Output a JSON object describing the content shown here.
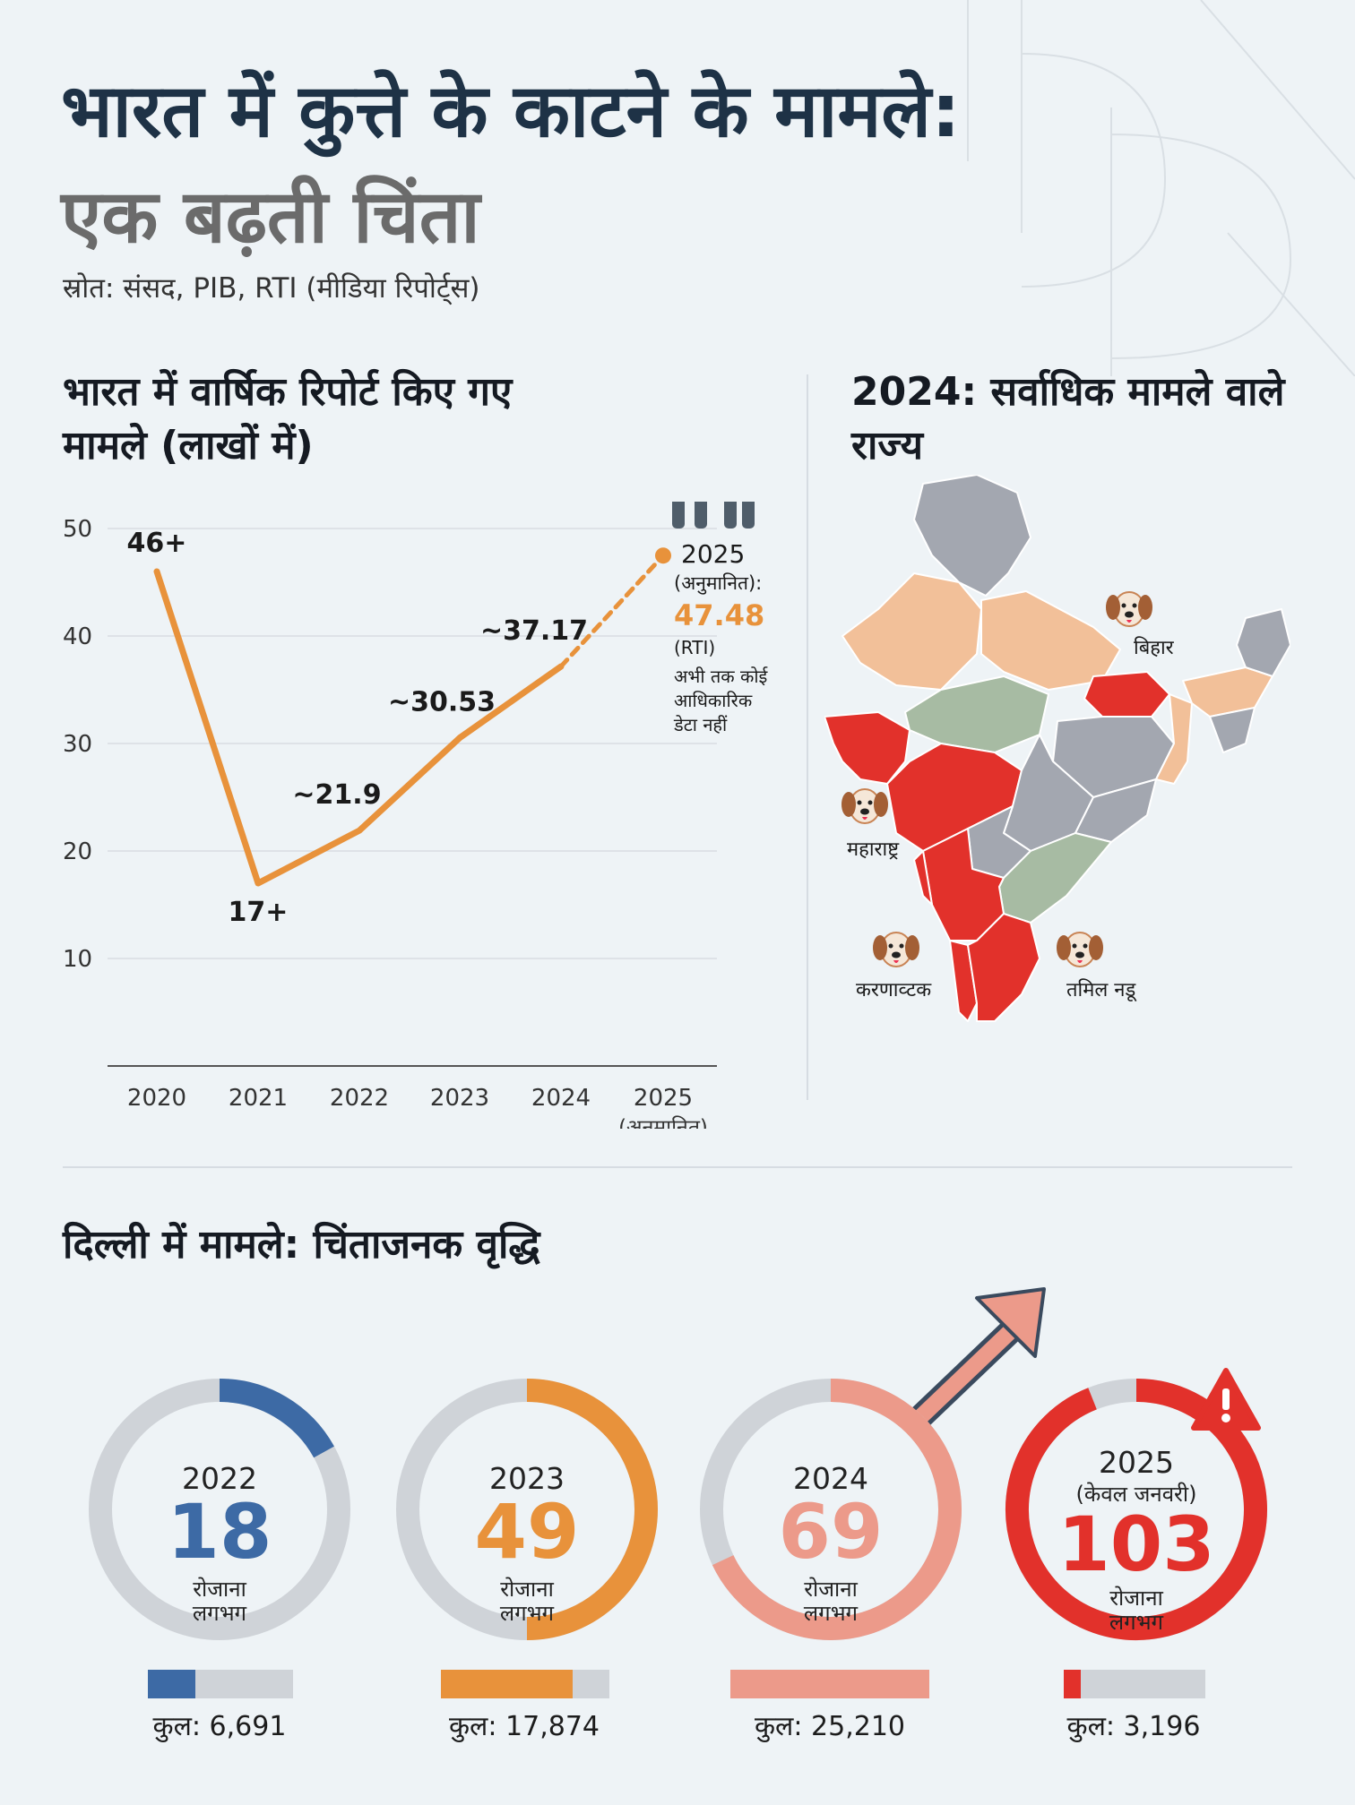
{
  "header": {
    "title_part1": "भारत में कुत्ते के काटने के मामले:",
    "title_part2": "एक बढ़ती चिंता",
    "source": "स्रोत: संसद, PIB, RTI (मीडिया रिपोर्ट्स)"
  },
  "line_section": {
    "title": "भारत में वार्षिक रिपोर्ट किए गए मामले (लाखों में)"
  },
  "map_section": {
    "title": "2024: सर्वाधिक मामले वाले राज्य",
    "state_labels": [
      "बिहार",
      "महाराष्ट्र",
      "करणाव्टक",
      "तमिल नडू"
    ],
    "colors": {
      "high": "#e2312b",
      "medium": "#f2c099",
      "low_green": "#a7bba3",
      "gray": "#a3a7b0"
    }
  },
  "chart_data": [
    {
      "type": "line",
      "title": "भारत में वार्षिक रिपोर्ट किए गए मामले (लाखों में)",
      "x": [
        "2020",
        "2021",
        "2022",
        "2023",
        "2024",
        "2025"
      ],
      "x_tick_labels": [
        "2020",
        "2021",
        "2022",
        "2023",
        "2024",
        "2025"
      ],
      "x_tick_sub": [
        "",
        "",
        "",
        "",
        "",
        "(अनुमानित)"
      ],
      "series": [
        {
          "values": [
            46,
            17,
            21.9,
            30.53,
            37.17,
            47.48
          ]
        }
      ],
      "data_labels": [
        "46+",
        "17+",
        "~21.9",
        "~30.53",
        "~37.17",
        "47.48"
      ],
      "projected_from_index": 4,
      "ylim": [
        0,
        50
      ],
      "yticks": [
        10,
        20,
        30,
        40,
        50
      ],
      "grid": true,
      "color": "#e8923b",
      "annotation": {
        "year": "2025",
        "note": "(अनुमानित):",
        "value": "47.48",
        "source": "(RTI)",
        "caption_lines": [
          "अभी तक कोई",
          "आधिकारिक",
          "डेटा नहीं"
        ]
      }
    },
    {
      "type": "donut",
      "title": "दिल्ली में मामले: चिंताजनक वृद्धि",
      "items": [
        {
          "year": "2022",
          "subtitle": "",
          "value": 18,
          "unit_line1": "रोजाना",
          "unit_line2": "लगभग",
          "total_label": "कुल: 6,691",
          "total": 6691,
          "ring_fraction": 0.17,
          "bar_fraction": 0.33,
          "color": "#3d6aa5"
        },
        {
          "year": "2023",
          "subtitle": "",
          "value": 49,
          "unit_line1": "रोजाना",
          "unit_line2": "लगभग",
          "total_label": "कुल: 17,874",
          "total": 17874,
          "ring_fraction": 0.5,
          "bar_fraction": 0.78,
          "color": "#e8923b"
        },
        {
          "year": "2024",
          "subtitle": "",
          "value": 69,
          "unit_line1": "रोजाना",
          "unit_line2": "लगभग",
          "total_label": "कुल: 25,210",
          "total": 25210,
          "ring_fraction": 0.68,
          "bar_fraction": 1.0,
          "color": "#ec9a8a"
        },
        {
          "year": "2025",
          "subtitle": "(केवल जनवरी)",
          "value": 103,
          "unit_line1": "रोजाना",
          "unit_line2": "लगभग",
          "total_label": "कुल: 3,196",
          "total": 3196,
          "ring_fraction": 0.94,
          "bar_fraction": 0.12,
          "color": "#e2312b"
        }
      ]
    }
  ]
}
